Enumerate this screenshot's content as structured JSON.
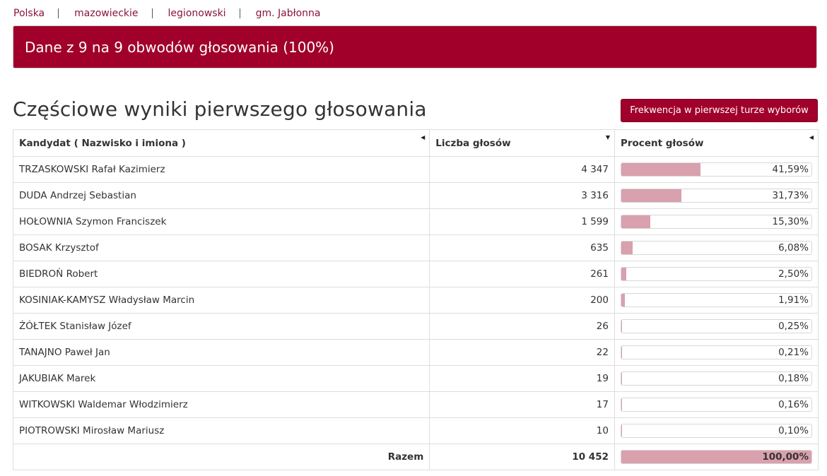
{
  "breadcrumb": [
    "Polska",
    "mazowieckie",
    "legionowski",
    "gm. Jabłonna"
  ],
  "banner": "Dane z 9 na 9 obwodów głosowania (100%)",
  "title": "Częściowe wyniki pierwszego głosowania",
  "turnout_button": "Frekwencja w pierwszej turze wyborów",
  "table": {
    "headers": [
      "Kandydat ( Nazwisko i imiona )",
      "Liczba głosów",
      "Procent głosów"
    ],
    "rows": [
      {
        "name": "TRZASKOWSKI Rafał Kazimierz",
        "votes": "4 347",
        "pct": "41,59%",
        "pct_value": 41.59
      },
      {
        "name": "DUDA Andrzej Sebastian",
        "votes": "3 316",
        "pct": "31,73%",
        "pct_value": 31.73
      },
      {
        "name": "HOŁOWNIA Szymon Franciszek",
        "votes": "1 599",
        "pct": "15,30%",
        "pct_value": 15.3
      },
      {
        "name": "BOSAK Krzysztof",
        "votes": "635",
        "pct": "6,08%",
        "pct_value": 6.08
      },
      {
        "name": "BIEDROŃ Robert",
        "votes": "261",
        "pct": "2,50%",
        "pct_value": 2.5
      },
      {
        "name": "KOSINIAK-KAMYSZ Władysław Marcin",
        "votes": "200",
        "pct": "1,91%",
        "pct_value": 1.91
      },
      {
        "name": "ŻÓŁTEK Stanisław Józef",
        "votes": "26",
        "pct": "0,25%",
        "pct_value": 0.25
      },
      {
        "name": "TANAJNO Paweł Jan",
        "votes": "22",
        "pct": "0,21%",
        "pct_value": 0.21
      },
      {
        "name": "JAKUBIAK Marek",
        "votes": "19",
        "pct": "0,18%",
        "pct_value": 0.18
      },
      {
        "name": "WITKOWSKI Waldemar Włodzimierz",
        "votes": "17",
        "pct": "0,16%",
        "pct_value": 0.16
      },
      {
        "name": "PIOTROWSKI Mirosław Mariusz",
        "votes": "10",
        "pct": "0,10%",
        "pct_value": 0.1
      }
    ],
    "total": {
      "label": "Razem",
      "votes": "10 452",
      "pct": "100,00%",
      "pct_value": 100
    }
  },
  "colors": {
    "brand": "#a0002a",
    "bar_fill": "#d9a0ad",
    "link": "#8a1538"
  }
}
